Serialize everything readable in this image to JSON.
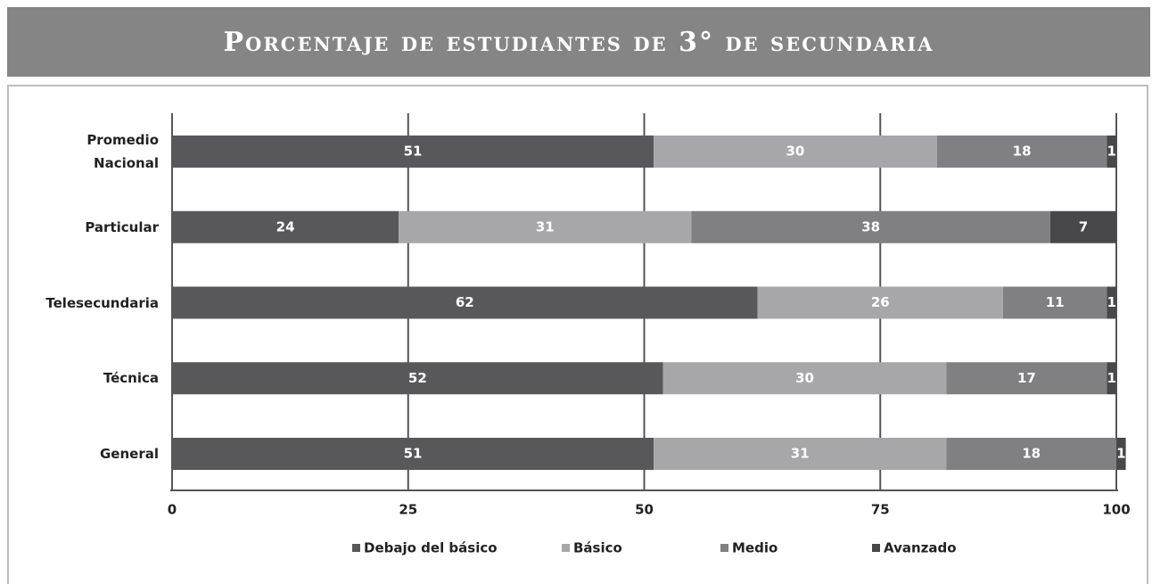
{
  "chart_data": {
    "type": "stacked-barh",
    "title": "Porcentaje de estudiantes de 3° de secundaria",
    "categories": [
      "Promedio Nacional",
      "Particular",
      "Telesecundaria",
      "Técnica",
      "General"
    ],
    "series": [
      {
        "name": "Debajo del básico",
        "color": "#58585a",
        "values": [
          51,
          24,
          62,
          52,
          51
        ]
      },
      {
        "name": "Básico",
        "color": "#a7a7a9",
        "values": [
          30,
          31,
          26,
          30,
          31
        ]
      },
      {
        "name": "Medio",
        "color": "#808082",
        "values": [
          18,
          38,
          11,
          17,
          18
        ]
      },
      {
        "name": "Avanzado",
        "color": "#48484a",
        "values": [
          1,
          7,
          1,
          1,
          1
        ]
      }
    ],
    "xlim": [
      0,
      100
    ],
    "xticks": [
      0,
      25,
      50,
      75,
      100
    ],
    "grid": true
  }
}
